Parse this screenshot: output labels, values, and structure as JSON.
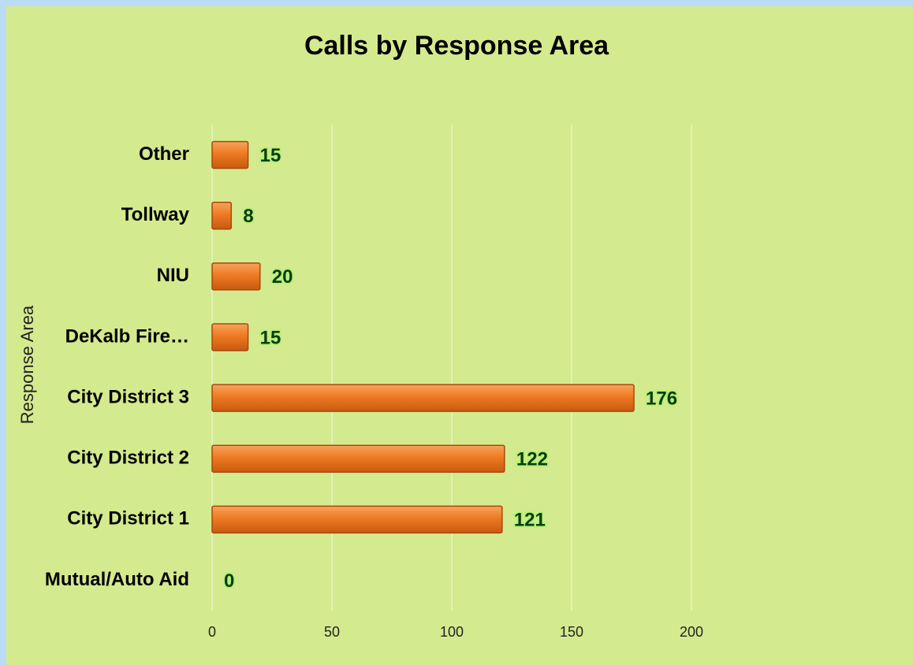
{
  "chart_data": {
    "type": "bar",
    "orientation": "horizontal",
    "title": "Calls by Response Area",
    "y_label": "Response Area",
    "categories": [
      "Other",
      "Tollway",
      "NIU",
      "DeKalb Fire…",
      "City District 3",
      "City District 2",
      "City District 1",
      "Mutual/Auto Aid"
    ],
    "values": [
      15,
      8,
      20,
      15,
      176,
      122,
      121,
      0
    ],
    "color": "#e8731c",
    "xlim": [
      0,
      200
    ],
    "xticks": [
      0,
      50,
      100,
      150,
      200
    ],
    "grid": true
  }
}
